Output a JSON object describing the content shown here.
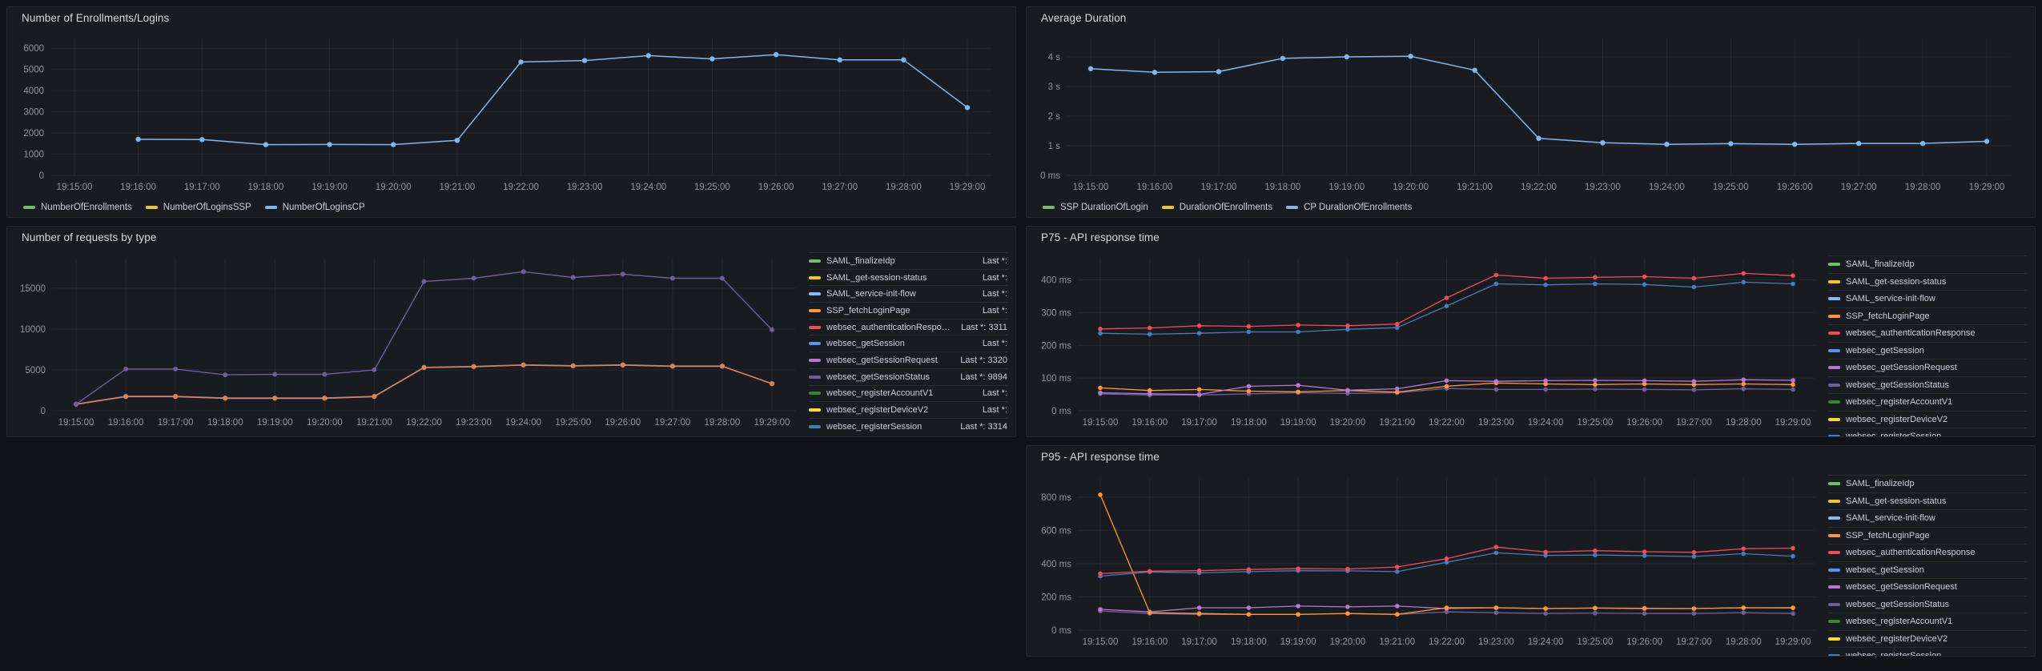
{
  "theme": {
    "page_bg": "#111217",
    "panel_bg": "#181b1f",
    "grid_color": "rgba(204,204,220,0.07)",
    "text_color": "#ccccdc"
  },
  "times": [
    "19:15:00",
    "19:16:00",
    "19:17:00",
    "19:18:00",
    "19:19:00",
    "19:20:00",
    "19:21:00",
    "19:22:00",
    "19:23:00",
    "19:24:00",
    "19:25:00",
    "19:26:00",
    "19:27:00",
    "19:28:00",
    "19:29:00"
  ],
  "panels": {
    "enrollments": {
      "title": "Number of Enrollments/Logins",
      "legend": [
        {
          "label": "NumberOfEnrollments",
          "color": "#73BF69"
        },
        {
          "label": "NumberOfLoginsSSP",
          "color": "#F2CC0C"
        },
        {
          "label": "NumberOfLoginsCP",
          "color": "#7EB8F0"
        }
      ],
      "chart_data": {
        "type": "line",
        "title": "Number of Enrollments/Logins",
        "ylim": [
          0,
          6500
        ],
        "yticks": [
          {
            "v": 0,
            "label": "0"
          },
          {
            "v": 1000,
            "label": "1000"
          },
          {
            "v": 2000,
            "label": "2000"
          },
          {
            "v": 3000,
            "label": "3000"
          },
          {
            "v": 4000,
            "label": "4000"
          },
          {
            "v": 5000,
            "label": "5000"
          },
          {
            "v": 6000,
            "label": "6000"
          }
        ],
        "series": [
          {
            "name": "NumberOfLoginsCP",
            "color": "#7EB8F0",
            "values": [
              null,
              1700,
              1690,
              1450,
              1460,
              1450,
              1650,
              5350,
              5420,
              5650,
              5500,
              5700,
              5450,
              5450,
              3200
            ]
          }
        ]
      }
    },
    "avg_duration": {
      "title": "Average Duration",
      "legend": [
        {
          "label": "SSP DurationOfLogin",
          "color": "#73BF69"
        },
        {
          "label": "DurationOfEnrollments",
          "color": "#F2CC0C"
        },
        {
          "label": "CP DurationOfEnrollments",
          "color": "#7EB8F0"
        }
      ],
      "chart_data": {
        "type": "line",
        "title": "Average Duration",
        "ylim": [
          0,
          4.65
        ],
        "yticks": [
          {
            "v": 0,
            "label": "0 ms"
          },
          {
            "v": 1,
            "label": "1 s"
          },
          {
            "v": 2,
            "label": "2 s"
          },
          {
            "v": 3,
            "label": "3 s"
          },
          {
            "v": 4,
            "label": "4 s"
          }
        ],
        "series": [
          {
            "name": "CP DurationOfEnrollments",
            "color": "#7EB8F0",
            "values": [
              3.6,
              3.48,
              3.5,
              3.95,
              4.0,
              4.02,
              3.55,
              1.25,
              1.1,
              1.05,
              1.07,
              1.05,
              1.08,
              1.08,
              1.15
            ]
          }
        ]
      }
    },
    "requests": {
      "title": "Number of requests by type",
      "legend": [
        {
          "label": "SAML_finalizeIdp",
          "color": "#73BF69",
          "last_text": "Last *:"
        },
        {
          "label": "SAML_get-session-status",
          "color": "#F2CC0C",
          "last_text": "Last *:"
        },
        {
          "label": "SAML_service-init-flow",
          "color": "#8AB8FF",
          "last_text": "Last *:"
        },
        {
          "label": "SSP_fetchLoginPage",
          "color": "#FF9830",
          "last_text": "Last *:"
        },
        {
          "label": "websec_authenticationResponse",
          "color": "#F2495C",
          "last_text": "Last *: 3311"
        },
        {
          "label": "websec_getSession",
          "color": "#5794F2",
          "last_text": "Last *:"
        },
        {
          "label": "websec_getSessionRequest",
          "color": "#B877D9",
          "last_text": "Last *: 3320"
        },
        {
          "label": "websec_getSessionStatus",
          "color": "#705DA0",
          "last_text": "Last *: 9894"
        },
        {
          "label": "websec_registerAccountV1",
          "color": "#37872D",
          "last_text": "Last *:"
        },
        {
          "label": "websec_registerDeviceV2",
          "color": "#FADE2A",
          "last_text": "Last *:"
        },
        {
          "label": "websec_registerSession",
          "color": "#447EBC",
          "last_text": "Last *: 3314"
        }
      ],
      "chart_data": {
        "type": "line",
        "title": "Number of requests by type",
        "ylim": [
          0,
          18600
        ],
        "yticks": [
          {
            "v": 0,
            "label": "0"
          },
          {
            "v": 5000,
            "label": "5000"
          },
          {
            "v": 10000,
            "label": "10000"
          },
          {
            "v": 15000,
            "label": "15000"
          }
        ],
        "series": [
          {
            "name": "websec_registerSession",
            "color": "#447EBC",
            "values": [
              820,
              1770,
              1770,
              1570,
              1570,
              1570,
              1770,
              5320,
              5420,
              5620,
              5520,
              5620,
              5470,
              5470,
              3314
            ]
          },
          {
            "name": "websec_getSessionRequest",
            "color": "#B877D9",
            "values": [
              780,
              1720,
              1720,
              1520,
              1520,
              1520,
              1720,
              5280,
              5380,
              5580,
              5480,
              5580,
              5430,
              5430,
              3320
            ]
          },
          {
            "name": "websec_authenticationResponse",
            "color": "#E08250",
            "values": [
              800,
              1750,
              1750,
              1550,
              1550,
              1550,
              1750,
              5300,
              5400,
              5600,
              5500,
              5600,
              5450,
              5450,
              3311
            ]
          },
          {
            "name": "websec_getSessionStatus",
            "color": "#705DA0",
            "values": [
              800,
              5100,
              5100,
              4400,
              4450,
              4450,
              5000,
              15800,
              16200,
              17000,
              16300,
              16700,
              16200,
              16200,
              9894
            ]
          }
        ]
      }
    },
    "p75": {
      "title": "P75 - API response time",
      "legend": [
        {
          "label": "SAML_finalizeIdp",
          "color": "#73BF69"
        },
        {
          "label": "SAML_get-session-status",
          "color": "#F2CC0C"
        },
        {
          "label": "SAML_service-init-flow",
          "color": "#8AB8FF"
        },
        {
          "label": "SSP_fetchLoginPage",
          "color": "#FF9830"
        },
        {
          "label": "websec_authenticationResponse",
          "color": "#F2495C"
        },
        {
          "label": "websec_getSession",
          "color": "#5794F2"
        },
        {
          "label": "websec_getSessionRequest",
          "color": "#B877D9"
        },
        {
          "label": "websec_getSessionStatus",
          "color": "#705DA0"
        },
        {
          "label": "websec_registerAccountV1",
          "color": "#37872D"
        },
        {
          "label": "websec_registerDeviceV2",
          "color": "#FADE2A"
        },
        {
          "label": "websec_registerSession",
          "color": "#447EBC"
        }
      ],
      "chart_data": {
        "type": "line",
        "title": "P75 - API response time",
        "ylim": [
          0,
          465
        ],
        "yticks": [
          {
            "v": 0,
            "label": "0 ms"
          },
          {
            "v": 100,
            "label": "100 ms"
          },
          {
            "v": 200,
            "label": "200 ms"
          },
          {
            "v": 300,
            "label": "300 ms"
          },
          {
            "v": 400,
            "label": "400 ms"
          }
        ],
        "series": [
          {
            "name": "websec_getSessionStatus",
            "color": "#705DA0",
            "values": [
              52,
              48,
              48,
              52,
              55,
              53,
              55,
              68,
              65,
              65,
              66,
              65,
              64,
              67,
              65
            ]
          },
          {
            "name": "SSP_fetchLoginPage",
            "color": "#FF9830",
            "values": [
              70,
              62,
              65,
              60,
              58,
              62,
              57,
              75,
              85,
              82,
              80,
              82,
              80,
              82,
              80
            ]
          },
          {
            "name": "websec_getSessionRequest",
            "color": "#B877D9",
            "values": [
              55,
              52,
              50,
              75,
              78,
              63,
              67,
              92,
              90,
              92,
              93,
              92,
              90,
              95,
              93
            ]
          },
          {
            "name": "websec_registerSession",
            "color": "#447EBC",
            "values": [
              237,
              234,
              237,
              241,
              241,
              249,
              254,
              320,
              388,
              385,
              388,
              386,
              378,
              393,
              388
            ]
          },
          {
            "name": "websec_authenticationResponse",
            "color": "#F2495C",
            "values": [
              250,
              253,
              260,
              258,
              262,
              260,
              265,
              345,
              415,
              405,
              408,
              410,
              405,
              420,
              413
            ]
          }
        ]
      }
    },
    "p95": {
      "title": "P95 - API response time",
      "legend": [
        {
          "label": "SAML_finalizeIdp",
          "color": "#73BF69"
        },
        {
          "label": "SAML_get-session-status",
          "color": "#F2CC0C"
        },
        {
          "label": "SAML_service-init-flow",
          "color": "#8AB8FF"
        },
        {
          "label": "SSP_fetchLoginPage",
          "color": "#FF9830"
        },
        {
          "label": "websec_authenticationResponse",
          "color": "#F2495C"
        },
        {
          "label": "websec_getSession",
          "color": "#5794F2"
        },
        {
          "label": "websec_getSessionRequest",
          "color": "#B877D9"
        },
        {
          "label": "websec_getSessionStatus",
          "color": "#705DA0"
        },
        {
          "label": "websec_registerAccountV1",
          "color": "#37872D"
        },
        {
          "label": "websec_registerDeviceV2",
          "color": "#FADE2A"
        },
        {
          "label": "websec_registerSession",
          "color": "#447EBC"
        }
      ],
      "chart_data": {
        "type": "line",
        "title": "P95 - API response time",
        "ylim": [
          0,
          915
        ],
        "yticks": [
          {
            "v": 0,
            "label": "0 ms"
          },
          {
            "v": 200,
            "label": "200 ms"
          },
          {
            "v": 400,
            "label": "400 ms"
          },
          {
            "v": 600,
            "label": "600 ms"
          },
          {
            "v": 800,
            "label": "800 ms"
          }
        ],
        "series": [
          {
            "name": "websec_getSessionStatus",
            "color": "#705DA0",
            "values": [
              115,
              100,
              95,
              95,
              95,
              100,
              95,
              110,
              105,
              100,
              103,
              100,
              100,
              105,
              100
            ]
          },
          {
            "name": "websec_getSessionRequest",
            "color": "#B877D9",
            "values": [
              125,
              110,
              135,
              135,
              145,
              140,
              145,
              130,
              135,
              130,
              133,
              132,
              130,
              135,
              133
            ]
          },
          {
            "name": "SSP_fetchLoginPage",
            "color": "#FF9830",
            "values": [
              815,
              105,
              100,
              95,
              95,
              100,
              95,
              135,
              135,
              130,
              133,
              130,
              130,
              135,
              135
            ]
          },
          {
            "name": "websec_registerSession",
            "color": "#447EBC",
            "values": [
              325,
              350,
              345,
              352,
              358,
              357,
              352,
              408,
              465,
              450,
              452,
              448,
              443,
              460,
              445
            ]
          },
          {
            "name": "websec_authenticationResponse",
            "color": "#F2495C",
            "values": [
              340,
              355,
              358,
              365,
              370,
              368,
              380,
              430,
              500,
              470,
              478,
              472,
              468,
              490,
              493
            ]
          }
        ]
      }
    }
  }
}
